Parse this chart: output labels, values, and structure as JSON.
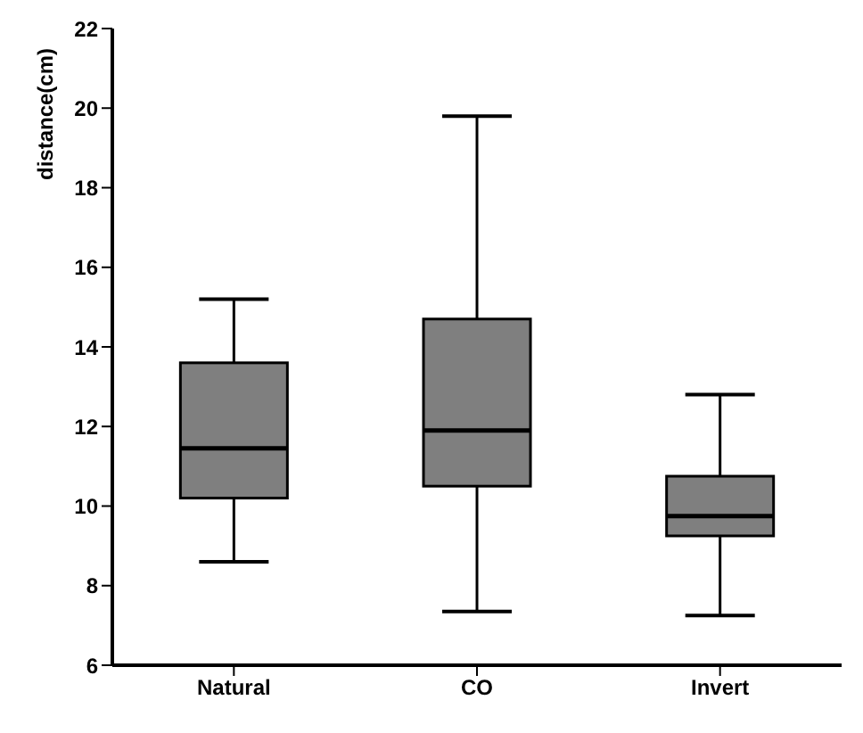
{
  "chart_data": {
    "type": "box",
    "ylabel": "distance(cm)",
    "categories": [
      "Natural",
      "CO",
      "Invert"
    ],
    "boxes": [
      {
        "low": 8.6,
        "q1": 10.2,
        "median": 11.45,
        "q3": 13.6,
        "high": 15.2
      },
      {
        "low": 7.35,
        "q1": 10.5,
        "median": 11.9,
        "q3": 14.7,
        "high": 19.8
      },
      {
        "low": 7.25,
        "q1": 9.25,
        "median": 9.75,
        "q3": 10.75,
        "high": 12.8
      }
    ],
    "color": "#7f7f7f",
    "ylim": [
      6,
      22
    ],
    "yticks": [
      6,
      8,
      10,
      12,
      14,
      16,
      18,
      20,
      22
    ],
    "grid": false
  }
}
